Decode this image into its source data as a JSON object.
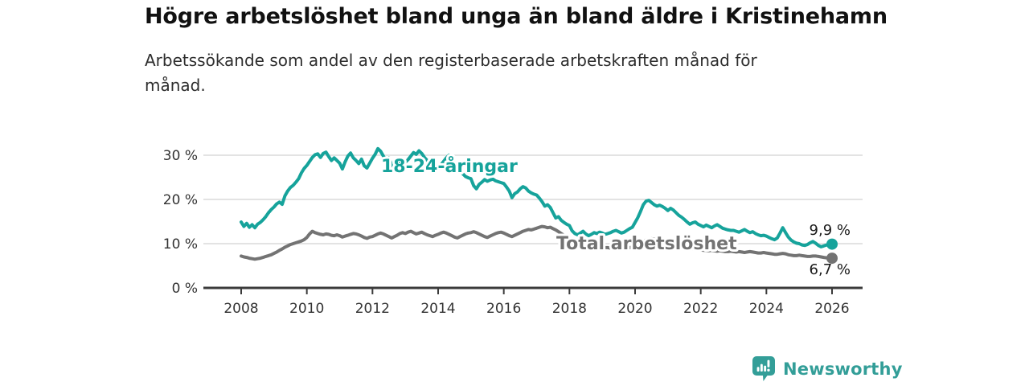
{
  "page": {
    "title": "Högre arbetslöshet bland unga än bland äldre i Kristinehamn",
    "subtitle": "Arbetssökande som andel av den registerbaserade arbetskraften månad för månad."
  },
  "footer": {
    "brand": "Newsworthy",
    "brand_color": "#339e98",
    "logo_icon": "speech-bubble-bar-chart-exclamation-icon"
  },
  "chart_data": {
    "type": "line",
    "unit": "%",
    "x_start": 2008.0,
    "x_end": 2026.0,
    "points_per_year": 12,
    "ylim": [
      0,
      33
    ],
    "grid": "horizontal",
    "legend_position": "inline-labels",
    "yticks": [
      {
        "value": 0,
        "label": "0 %"
      },
      {
        "value": 10,
        "label": "10 %"
      },
      {
        "value": 20,
        "label": "20 %"
      },
      {
        "value": 30,
        "label": "30 %"
      }
    ],
    "xticks": [
      {
        "value": 2008,
        "label": "2008"
      },
      {
        "value": 2010,
        "label": "2010"
      },
      {
        "value": 2012,
        "label": "2012"
      },
      {
        "value": 2014,
        "label": "2014"
      },
      {
        "value": 2016,
        "label": "2016"
      },
      {
        "value": 2018,
        "label": "2018"
      },
      {
        "value": 2020,
        "label": "2020"
      },
      {
        "value": 2022,
        "label": "2022"
      },
      {
        "value": 2024,
        "label": "2024"
      },
      {
        "value": 2026,
        "label": "2026"
      }
    ],
    "series": [
      {
        "name": "18-24-åringar",
        "color": "#16a39b",
        "end_value": 9.9,
        "end_label": "9,9 %",
        "values": [
          14.9,
          13.9,
          14.6,
          13.7,
          14.3,
          13.6,
          14.4,
          14.8,
          15.4,
          16.1,
          17.0,
          17.7,
          18.3,
          19.0,
          19.4,
          18.9,
          20.8,
          21.9,
          22.7,
          23.2,
          23.9,
          24.7,
          26.0,
          27.0,
          27.7,
          28.6,
          29.5,
          30.1,
          30.3,
          29.5,
          30.4,
          30.7,
          29.7,
          28.8,
          29.4,
          28.8,
          28.2,
          26.9,
          28.5,
          29.8,
          30.5,
          29.4,
          28.8,
          28.1,
          29.1,
          27.6,
          27.1,
          28.2,
          29.3,
          30.2,
          31.5,
          30.9,
          29.8,
          28.9,
          29.4,
          27.9,
          26.8,
          27.6,
          29.0,
          28.5,
          28.4,
          29.0,
          29.8,
          30.6,
          30.2,
          31.0,
          30.4,
          29.5,
          28.8,
          28.2,
          27.6,
          27.2,
          27.0,
          27.8,
          28.6,
          29.4,
          30.0,
          29.2,
          28.2,
          27.2,
          26.4,
          25.8,
          25.2,
          24.9,
          24.7,
          23.1,
          22.4,
          23.4,
          23.9,
          24.5,
          24.1,
          24.4,
          24.6,
          24.2,
          24.0,
          23.8,
          23.6,
          22.8,
          21.9,
          20.4,
          21.3,
          21.7,
          22.4,
          22.9,
          22.6,
          21.9,
          21.5,
          21.2,
          21.0,
          20.3,
          19.5,
          18.5,
          18.8,
          18.2,
          17.0,
          15.8,
          16.1,
          15.3,
          14.8,
          14.4,
          14.1,
          12.9,
          12.3,
          12.0,
          12.4,
          12.8,
          12.2,
          11.8,
          12.1,
          12.5,
          12.3,
          12.6,
          12.4,
          12.1,
          12.3,
          12.5,
          12.8,
          13.0,
          12.7,
          12.4,
          12.6,
          13.0,
          13.4,
          13.7,
          14.8,
          15.9,
          17.3,
          18.8,
          19.6,
          19.8,
          19.3,
          18.8,
          18.5,
          18.7,
          18.4,
          18.0,
          17.5,
          18.0,
          17.6,
          17.0,
          16.4,
          16.0,
          15.5,
          14.9,
          14.4,
          14.7,
          14.9,
          14.4,
          14.1,
          13.8,
          14.2,
          13.9,
          13.6,
          14.0,
          14.3,
          13.9,
          13.5,
          13.3,
          13.1,
          13.0,
          13.0,
          12.8,
          12.6,
          12.9,
          13.2,
          12.8,
          12.5,
          12.7,
          12.3,
          12.0,
          11.8,
          11.9,
          11.7,
          11.4,
          11.1,
          10.9,
          11.3,
          12.4,
          13.6,
          12.5,
          11.5,
          10.8,
          10.4,
          10.1,
          10.0,
          9.7,
          9.6,
          9.8,
          10.2,
          10.5,
          10.1,
          9.6,
          9.3,
          9.5,
          9.7,
          9.8,
          9.9
        ]
      },
      {
        "name": "Total arbetslöshet",
        "color": "#737373",
        "end_value": 6.7,
        "end_label": "6,7 %",
        "values": [
          7.2,
          7.0,
          6.9,
          6.7,
          6.6,
          6.5,
          6.6,
          6.7,
          6.9,
          7.1,
          7.3,
          7.5,
          7.8,
          8.1,
          8.5,
          8.8,
          9.2,
          9.5,
          9.8,
          10.0,
          10.2,
          10.4,
          10.6,
          10.9,
          11.4,
          12.2,
          12.8,
          12.5,
          12.3,
          12.1,
          12.0,
          12.2,
          12.1,
          11.9,
          11.8,
          12.0,
          11.8,
          11.5,
          11.7,
          11.9,
          12.1,
          12.3,
          12.2,
          12.0,
          11.7,
          11.4,
          11.2,
          11.5,
          11.6,
          11.9,
          12.2,
          12.4,
          12.2,
          11.9,
          11.6,
          11.3,
          11.6,
          11.9,
          12.3,
          12.5,
          12.3,
          12.6,
          12.8,
          12.5,
          12.2,
          12.4,
          12.6,
          12.3,
          12.0,
          11.8,
          11.6,
          11.9,
          12.1,
          12.4,
          12.6,
          12.4,
          12.1,
          11.8,
          11.5,
          11.3,
          11.6,
          11.9,
          12.2,
          12.4,
          12.5,
          12.7,
          12.5,
          12.2,
          11.9,
          11.6,
          11.4,
          11.7,
          12.0,
          12.3,
          12.5,
          12.6,
          12.4,
          12.1,
          11.8,
          11.6,
          11.9,
          12.2,
          12.5,
          12.8,
          13.0,
          13.2,
          13.1,
          13.3,
          13.5,
          13.7,
          13.9,
          13.8,
          13.6,
          13.7,
          13.4,
          13.1,
          12.7,
          12.3,
          11.9,
          11.6,
          11.2,
          10.9,
          10.6,
          10.3,
          10.0,
          9.8,
          9.7,
          9.6,
          9.5,
          9.4,
          9.3,
          9.2,
          9.2,
          9.1,
          9.1,
          9.0,
          9.0,
          9.1,
          9.2,
          9.1,
          9.0,
          9.0,
          9.1,
          9.2,
          9.4,
          9.6,
          10.0,
          10.5,
          10.8,
          11.0,
          11.1,
          11.0,
          10.9,
          10.7,
          10.5,
          10.4,
          10.3,
          10.2,
          10.0,
          9.8,
          9.6,
          9.5,
          9.4,
          9.2,
          9.0,
          8.9,
          8.8,
          8.7,
          8.6,
          8.5,
          8.5,
          8.4,
          8.5,
          8.4,
          8.3,
          8.4,
          8.3,
          8.2,
          8.2,
          8.3,
          8.2,
          8.1,
          8.2,
          8.1,
          8.0,
          8.1,
          8.2,
          8.1,
          8.0,
          7.9,
          7.9,
          8.0,
          7.9,
          7.8,
          7.7,
          7.6,
          7.6,
          7.7,
          7.8,
          7.7,
          7.5,
          7.4,
          7.3,
          7.3,
          7.4,
          7.3,
          7.2,
          7.1,
          7.1,
          7.2,
          7.2,
          7.1,
          7.0,
          6.9,
          6.8,
          6.8,
          6.7
        ]
      }
    ]
  }
}
